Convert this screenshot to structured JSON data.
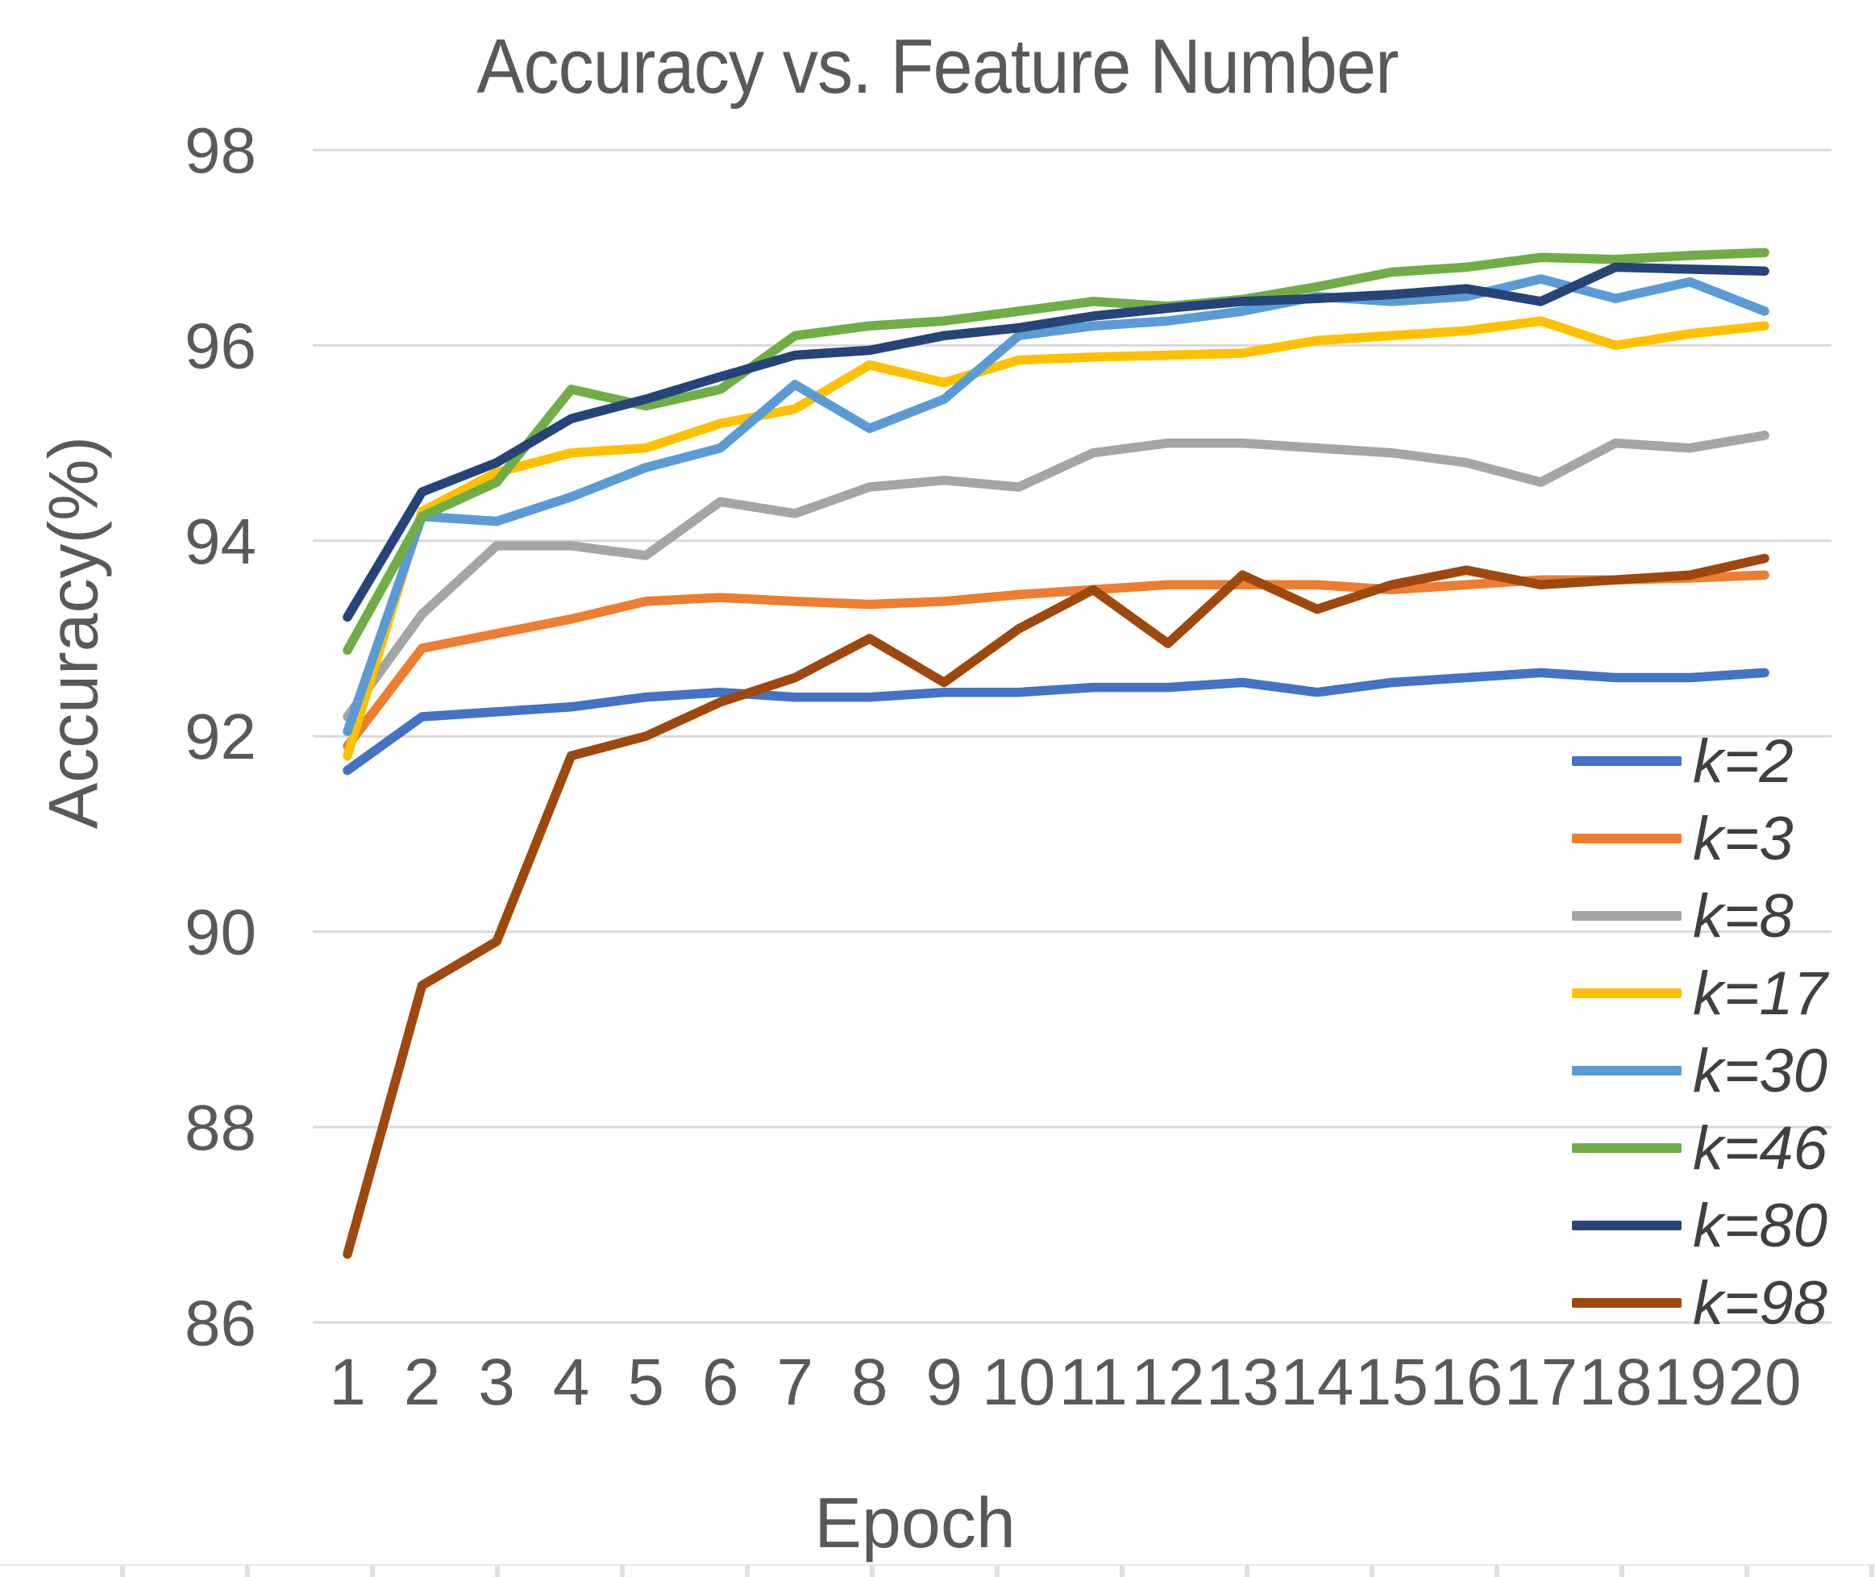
{
  "chart_data": {
    "type": "line",
    "title": "Accuracy vs. Feature Number",
    "xlabel": "Epoch",
    "ylabel": "Accuracy(%)",
    "x": [
      1,
      2,
      3,
      4,
      5,
      6,
      7,
      8,
      9,
      10,
      11,
      12,
      13,
      14,
      15,
      16,
      17,
      18,
      19,
      20
    ],
    "x_tick_labels": [
      "1",
      "2",
      "3",
      "4",
      "5",
      "6",
      "7",
      "8",
      "9",
      "10",
      "11",
      "12",
      "13",
      "14",
      "15",
      "16",
      "17",
      "18",
      "19",
      "20"
    ],
    "y_ticks": [
      98,
      96,
      94,
      92,
      90,
      88,
      86
    ],
    "ylim": [
      85.6,
      98.5
    ],
    "grid": "horizontal",
    "legend_position": "right-inside",
    "series": [
      {
        "name": "k=2",
        "color": "#4472C4",
        "values": [
          91.65,
          92.2,
          92.25,
          92.3,
          92.4,
          92.45,
          92.4,
          92.4,
          92.45,
          92.45,
          92.5,
          92.5,
          92.55,
          92.45,
          92.55,
          92.6,
          92.65,
          92.6,
          92.6,
          92.65
        ]
      },
      {
        "name": "k=3",
        "color": "#ED7D31",
        "values": [
          91.9,
          92.9,
          93.05,
          93.2,
          93.38,
          93.42,
          93.38,
          93.35,
          93.38,
          93.45,
          93.5,
          93.55,
          93.55,
          93.55,
          93.5,
          93.55,
          93.6,
          93.6,
          93.62,
          93.65
        ]
      },
      {
        "name": "k=8",
        "color": "#A5A5A5",
        "values": [
          92.2,
          93.25,
          93.95,
          93.95,
          93.85,
          94.4,
          94.28,
          94.55,
          94.62,
          94.55,
          94.9,
          95.0,
          95.0,
          94.95,
          94.9,
          94.8,
          94.6,
          95.0,
          94.95,
          95.08
        ]
      },
      {
        "name": "k=17",
        "color": "#FFC000",
        "values": [
          91.8,
          94.3,
          94.7,
          94.9,
          94.95,
          95.2,
          95.35,
          95.8,
          95.62,
          95.85,
          95.88,
          95.9,
          95.92,
          96.05,
          96.1,
          96.15,
          96.25,
          96.0,
          96.12,
          96.2
        ]
      },
      {
        "name": "k=30",
        "color": "#5B9BD5",
        "values": [
          92.05,
          94.25,
          94.2,
          94.45,
          94.75,
          94.95,
          95.6,
          95.15,
          95.45,
          96.1,
          96.2,
          96.25,
          96.35,
          96.5,
          96.45,
          96.5,
          96.68,
          96.48,
          96.65,
          96.35
        ]
      },
      {
        "name": "k=46",
        "color": "#70AD47",
        "values": [
          92.88,
          94.25,
          94.6,
          95.55,
          95.38,
          95.55,
          96.1,
          96.2,
          96.25,
          96.35,
          96.45,
          96.4,
          96.47,
          96.6,
          96.75,
          96.8,
          96.9,
          96.88,
          96.92,
          96.95
        ]
      },
      {
        "name": "k=80",
        "color": "#264478",
        "values": [
          93.22,
          94.5,
          94.8,
          95.25,
          95.45,
          95.68,
          95.9,
          95.95,
          96.1,
          96.18,
          96.3,
          96.38,
          96.45,
          96.48,
          96.52,
          96.58,
          96.45,
          96.8,
          96.78,
          96.76
        ]
      },
      {
        "name": "k=98",
        "color": "#9E480E",
        "values": [
          86.7,
          89.45,
          89.9,
          91.8,
          92.0,
          92.35,
          92.6,
          93.0,
          92.55,
          93.1,
          93.5,
          92.95,
          93.65,
          93.3,
          93.55,
          93.7,
          93.55,
          93.6,
          93.65,
          93.82
        ]
      }
    ],
    "style": {
      "title_color": "#595959",
      "axis_text_color": "#595959",
      "legend_text_color": "#404040",
      "gridline_color": "#D9D9D9",
      "background": "#FFFFFF"
    }
  }
}
